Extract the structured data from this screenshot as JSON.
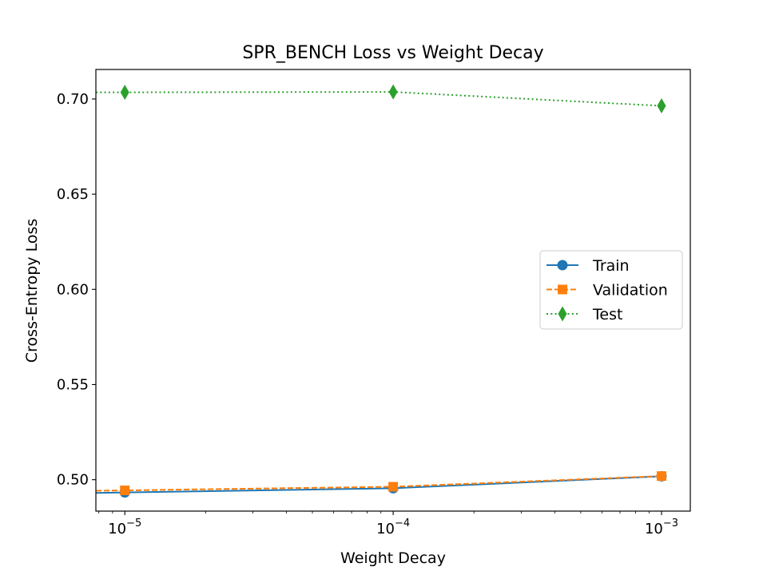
{
  "chart_data": {
    "type": "line",
    "title": "SPR_BENCH Loss vs Weight Decay",
    "xlabel": "Weight Decay",
    "ylabel": "Cross-Entropy Loss",
    "x_scale": "log",
    "x": [
      1e-05,
      0.0001,
      0.001
    ],
    "x_tick_bases": [
      "10",
      "10",
      "10"
    ],
    "x_tick_exponents": [
      "−5",
      "−4",
      "−3"
    ],
    "y_ticks": [
      "0.50",
      "0.55",
      "0.60",
      "0.65",
      "0.70"
    ],
    "ylim": [
      0.4835,
      0.7155
    ],
    "xlim": [
      7.8e-06,
      0.00128
    ],
    "grid": false,
    "legend_position": "center right",
    "series": [
      {
        "name": "Train",
        "values": [
          0.4933,
          0.4955,
          0.5018
        ],
        "color": "#1f77b4",
        "linestyle": "solid",
        "marker": "circle"
      },
      {
        "name": "Validation",
        "values": [
          0.4944,
          0.4963,
          0.5019
        ],
        "color": "#ff7f0e",
        "linestyle": "dashed",
        "marker": "square"
      },
      {
        "name": "Test",
        "values": [
          0.7035,
          0.7037,
          0.6964
        ],
        "color": "#2ca02c",
        "linestyle": "dotted",
        "marker": "thin_diamond"
      }
    ]
  }
}
